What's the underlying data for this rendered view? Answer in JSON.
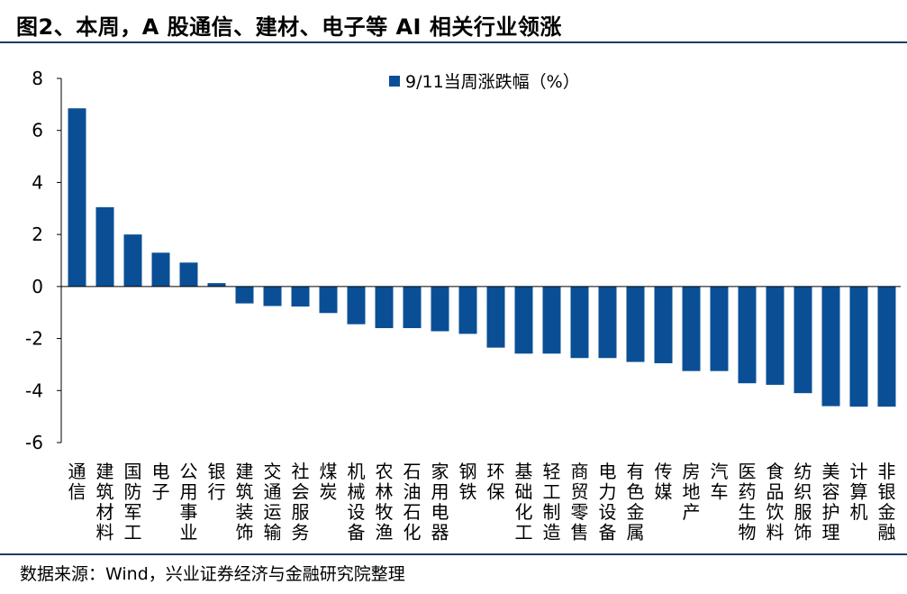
{
  "header": {
    "title": "图2、本周，A 股通信、建材、电子等 AI 相关行业领涨"
  },
  "footer": {
    "source": "数据来源：Wind，兴业证券经济与金融研究院整理"
  },
  "colors": {
    "bar": "#0a4f96",
    "rule": "#1f3a6b",
    "axis": "#000000"
  },
  "chart_data": {
    "type": "bar",
    "title": "",
    "xlabel": "",
    "ylabel": "",
    "ylim": [
      -6,
      8
    ],
    "yticks": [
      "8",
      "6",
      "4",
      "2",
      "0",
      "-2",
      "-4",
      "-6"
    ],
    "grid": false,
    "legend_position": "top-center",
    "series": [
      {
        "name": "9/11当周涨跌幅（%）",
        "values": [
          6.85,
          3.05,
          2.0,
          1.3,
          0.92,
          0.13,
          -0.65,
          -0.75,
          -0.77,
          -1.02,
          -1.45,
          -1.6,
          -1.6,
          -1.72,
          -1.82,
          -2.35,
          -2.58,
          -2.58,
          -2.75,
          -2.75,
          -2.9,
          -2.95,
          -3.25,
          -3.25,
          -3.72,
          -3.78,
          -4.1,
          -4.6,
          -4.62,
          -4.62
        ]
      }
    ],
    "categories": [
      "通信",
      "建筑材料",
      "国防军工",
      "电子",
      "公用事业",
      "银行",
      "建筑装饰",
      "交通运输",
      "社会服务",
      "煤炭",
      "机械设备",
      "农林牧渔",
      "石油石化",
      "家用电器",
      "钢铁",
      "环保",
      "基础化工",
      "轻工制造",
      "商贸零售",
      "电力设备",
      "有色金属",
      "传媒",
      "房地产",
      "汽车",
      "医药生物",
      "食品饮料",
      "纺织服饰",
      "美容护理",
      "计算机",
      "非银金融"
    ]
  }
}
